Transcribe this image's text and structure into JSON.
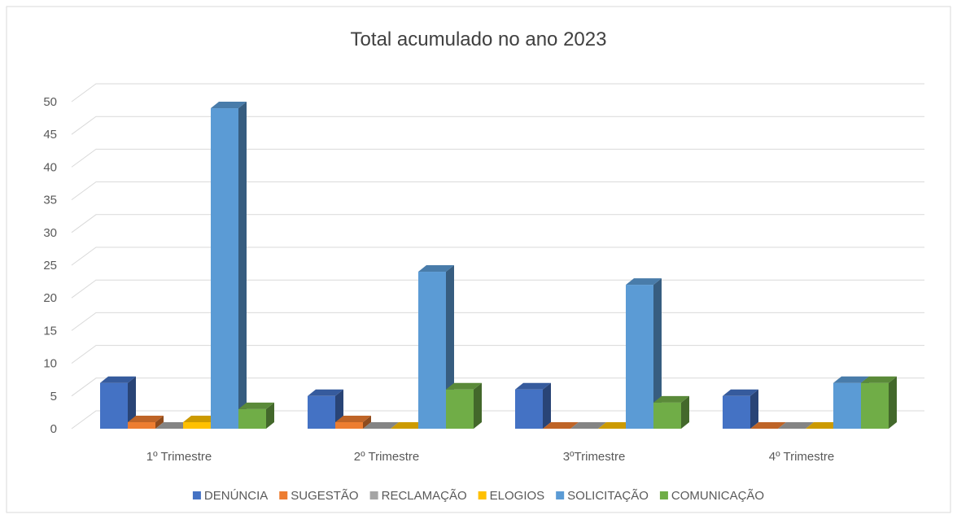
{
  "chart_data": {
    "type": "bar3d",
    "title": "Total acumulado no ano 2023",
    "categories": [
      "1º Trimestre",
      "2º Trimestre",
      "3ºTrimestre",
      "4º Trimestre"
    ],
    "series": [
      {
        "name": "DENÚNCIA",
        "color": "#4472c4",
        "values": [
          7,
          5,
          6,
          5
        ]
      },
      {
        "name": "SUGESTÃO",
        "color": "#ed7d31",
        "values": [
          1,
          1,
          0,
          0
        ]
      },
      {
        "name": "RECLAMAÇÃO",
        "color": "#a5a5a5",
        "values": [
          0,
          0,
          0,
          0
        ]
      },
      {
        "name": "ELOGIOS",
        "color": "#ffc000",
        "values": [
          1,
          0,
          0,
          0
        ]
      },
      {
        "name": "SOLICITAÇÃO",
        "color": "#5b9bd5",
        "values": [
          49,
          24,
          22,
          7
        ]
      },
      {
        "name": "COMUNICAÇÃO",
        "color": "#70ad47",
        "values": [
          3,
          6,
          4,
          7
        ]
      }
    ],
    "ylim": [
      0,
      50
    ],
    "yticks": [
      0,
      5,
      10,
      15,
      20,
      25,
      30,
      35,
      40,
      45,
      50
    ],
    "grid": true,
    "legend": "bottom"
  }
}
